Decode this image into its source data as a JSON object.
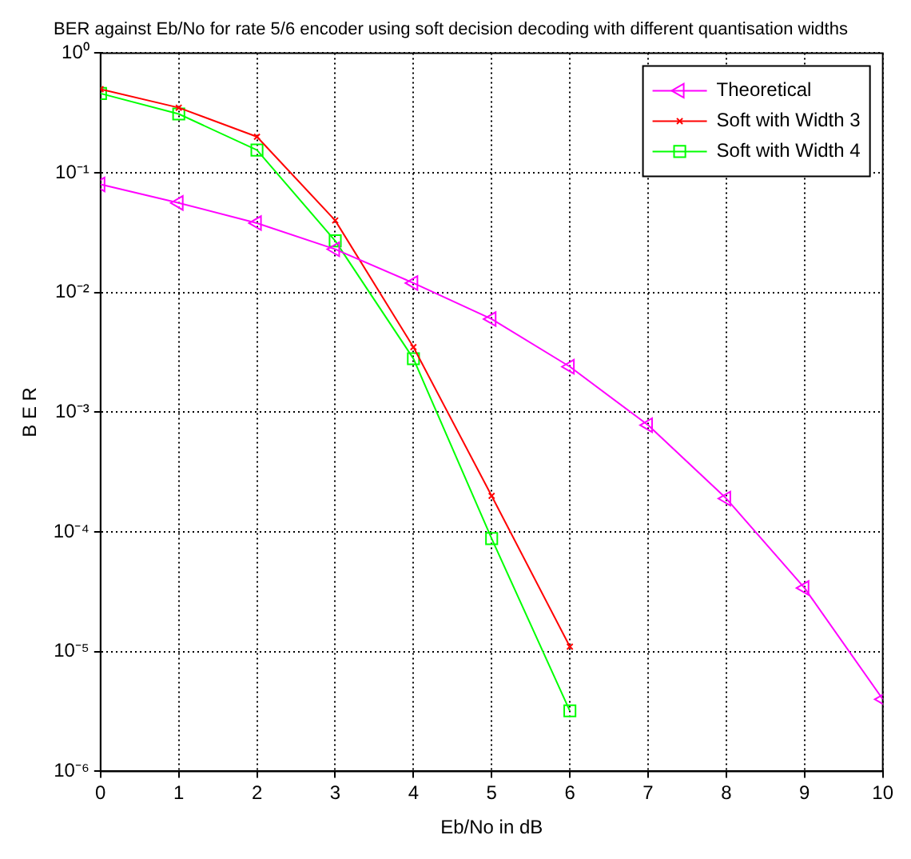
{
  "chart_data": {
    "type": "line",
    "title": "BER against Eb/No for rate 5/6 encoder using soft decision decoding with different quantisation widths",
    "xlabel": "Eb/No in dB",
    "ylabel": "B E R",
    "x": [
      0,
      1,
      2,
      3,
      4,
      5,
      6,
      7,
      8,
      9,
      10
    ],
    "series": [
      {
        "name": "Theoretical",
        "color": "#ff00ff",
        "marker": "triangle",
        "values": [
          0.08,
          0.056,
          0.038,
          0.023,
          0.012,
          0.006,
          0.0024,
          0.00078,
          0.00019,
          3.4e-05,
          4e-06
        ]
      },
      {
        "name": "Soft with Width 3",
        "color": "#ff0000",
        "marker": "cross",
        "values": [
          0.5,
          0.35,
          0.2,
          0.04,
          0.0035,
          0.0002,
          1.1e-05,
          null,
          null,
          null,
          null
        ]
      },
      {
        "name": "Soft with Width 4",
        "color": "#00ff00",
        "marker": "square",
        "values": [
          0.46,
          0.31,
          0.155,
          0.027,
          0.0028,
          8.8e-05,
          3.2e-06,
          null,
          null,
          null,
          null
        ]
      }
    ],
    "log": "y",
    "xlim": [
      0,
      10
    ],
    "xticks": [
      0,
      1,
      2,
      3,
      4,
      5,
      6,
      7,
      8,
      9,
      10
    ],
    "ylim": [
      1e-06,
      1
    ],
    "yticks": [
      {
        "value": 1e-06,
        "label": "10⁻⁶"
      },
      {
        "value": 1e-05,
        "label": "10⁻⁵"
      },
      {
        "value": 0.0001,
        "label": "10⁻⁴"
      },
      {
        "value": 0.001,
        "label": "10⁻³"
      },
      {
        "value": 0.01,
        "label": "10⁻²"
      },
      {
        "value": 0.1,
        "label": "10⁻¹"
      },
      {
        "value": 1,
        "label": "10⁰"
      }
    ],
    "grid": true,
    "legend": "top right",
    "line_style": "solid"
  }
}
